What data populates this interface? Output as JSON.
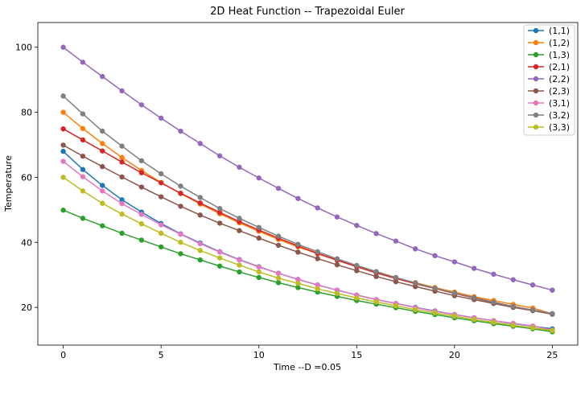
{
  "chart_data": {
    "type": "line",
    "title": "2D Heat Function -- Trapezoidal Euler",
    "xlabel": "Time --D =0.05",
    "ylabel": "Temperature",
    "xlim": [
      -1.3,
      26.3
    ],
    "ylim": [
      8.4,
      107.6
    ],
    "xticks": [
      0,
      5,
      10,
      15,
      20,
      25
    ],
    "yticks": [
      20,
      40,
      60,
      80,
      100
    ],
    "grid": false,
    "legend": "top-right",
    "x": [
      0,
      1,
      2,
      3,
      4,
      5,
      6,
      7,
      8,
      9,
      10,
      11,
      12,
      13,
      14,
      15,
      16,
      17,
      18,
      19,
      20,
      21,
      22,
      23,
      24,
      25
    ],
    "series": [
      {
        "name": "(1,1)",
        "color": "#1f77b4",
        "values": [
          68.0,
          62.4,
          57.5,
          53.1,
          49.3,
          45.8,
          42.6,
          39.8,
          37.1,
          34.7,
          32.5,
          30.5,
          28.6,
          26.9,
          25.3,
          23.8,
          22.4,
          21.2,
          20.0,
          18.9,
          17.8,
          16.8,
          15.9,
          15.0,
          14.2,
          13.4
        ]
      },
      {
        "name": "(1,2)",
        "color": "#ff7f0e",
        "values": [
          80.0,
          75.0,
          70.4,
          66.1,
          62.1,
          58.4,
          55.0,
          51.8,
          48.8,
          46.0,
          43.4,
          40.9,
          38.6,
          36.5,
          34.5,
          32.6,
          30.8,
          29.1,
          27.6,
          26.1,
          24.7,
          23.3,
          22.1,
          20.9,
          19.8,
          18.0
        ]
      },
      {
        "name": "(1,3)",
        "color": "#2ca02c",
        "values": [
          49.9,
          47.4,
          45.1,
          42.8,
          40.7,
          38.6,
          36.5,
          34.6,
          32.7,
          30.9,
          29.2,
          27.6,
          26.1,
          24.7,
          23.4,
          22.1,
          21.0,
          19.9,
          18.8,
          17.8,
          16.8,
          15.9,
          15.0,
          14.2,
          13.4,
          12.5
        ]
      },
      {
        "name": "(2,1)",
        "color": "#d62728",
        "values": [
          74.9,
          71.5,
          68.1,
          64.7,
          61.4,
          58.3,
          55.1,
          52.1,
          49.2,
          46.4,
          43.8,
          41.3,
          38.9,
          36.6,
          34.5,
          32.5,
          30.6,
          28.9,
          27.3,
          25.8,
          24.3,
          22.9,
          21.5,
          20.2,
          19.1,
          18.0
        ]
      },
      {
        "name": "(2,2)",
        "color": "#9467bd",
        "values": [
          100.0,
          95.4,
          91.0,
          86.6,
          82.3,
          78.2,
          74.2,
          70.4,
          66.6,
          63.1,
          59.8,
          56.6,
          53.5,
          50.6,
          47.8,
          45.2,
          42.7,
          40.4,
          38.0,
          35.9,
          34.0,
          32.0,
          30.2,
          28.5,
          26.9,
          25.3
        ]
      },
      {
        "name": "(2,3)",
        "color": "#8c564b",
        "values": [
          69.9,
          66.5,
          63.3,
          60.1,
          57.0,
          54.0,
          51.1,
          48.4,
          45.9,
          43.6,
          41.3,
          39.1,
          37.0,
          35.0,
          33.1,
          31.3,
          29.5,
          27.9,
          26.4,
          25.0,
          23.6,
          22.4,
          21.2,
          20.0,
          19.0,
          17.9
        ]
      },
      {
        "name": "(3,1)",
        "color": "#e377c2",
        "values": [
          64.9,
          60.2,
          55.8,
          51.9,
          48.6,
          45.4,
          42.5,
          39.6,
          37.0,
          34.6,
          32.4,
          30.5,
          28.6,
          26.9,
          25.3,
          23.8,
          22.4,
          21.2,
          19.9,
          18.8,
          17.8,
          16.8,
          15.9,
          15.1,
          14.3,
          13.0
        ]
      },
      {
        "name": "(3,2)",
        "color": "#7f7f7f",
        "values": [
          85.0,
          79.5,
          74.2,
          69.6,
          65.1,
          61.1,
          57.3,
          53.8,
          50.4,
          47.4,
          44.6,
          41.9,
          39.4,
          37.1,
          34.9,
          32.9,
          31.0,
          29.2,
          27.5,
          25.9,
          24.4,
          23.0,
          21.6,
          20.3,
          19.2,
          18.1
        ]
      },
      {
        "name": "(3,3)",
        "color": "#bcbd22",
        "values": [
          60.0,
          55.8,
          52.0,
          48.7,
          45.7,
          42.8,
          40.0,
          37.5,
          35.2,
          33.0,
          30.9,
          29.0,
          27.4,
          25.7,
          24.3,
          22.9,
          21.7,
          20.5,
          19.3,
          18.3,
          17.3,
          16.3,
          15.4,
          14.5,
          13.7,
          12.9
        ]
      }
    ]
  }
}
